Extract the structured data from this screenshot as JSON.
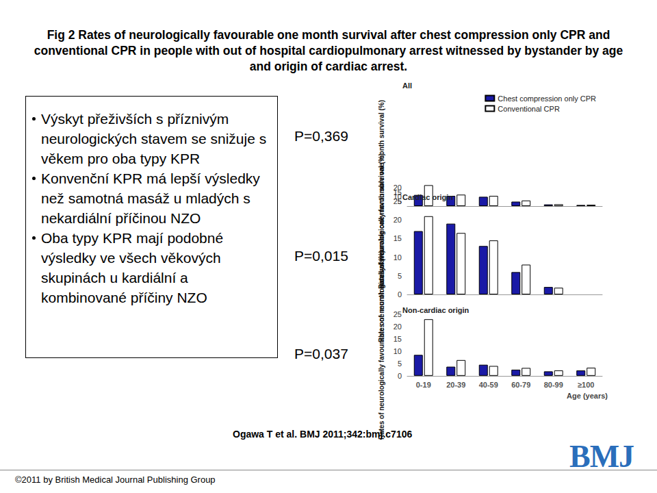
{
  "page": {
    "title": "Fig 2 Rates of neurologically favourable one month survival after chest compression only CPR and conventional CPR in people with out of hospital cardiopulmonary arrest witnessed by bystander by age and origin of cardiac arrest.",
    "bullets": [
      "Výskyt přeživších s příznivým neurologických stavem se snižuje s věkem pro oba typy KPR",
      "Konvenční KPR má lepší výsledky než samotná masáž u mladých s nekardiální příčinou NZO",
      "Oba typy KPR mají podobné výsledky ve všech věkových skupinách u kardiální a kombinované příčiny NZO"
    ],
    "citation": "Ogawa T et al. BMJ 2011;342:bmj.c7106",
    "logo": "BMJ",
    "copyright": "©2011 by British Medical Journal Publishing Group"
  },
  "chart_data": [
    {
      "type": "bar",
      "title": "All",
      "annotations": [
        "P=0,369"
      ],
      "categories": [
        "0-19",
        "20-39",
        "40-59",
        "60-79",
        "80-99",
        "≥100"
      ],
      "series": [
        {
          "name": "Chest compression only CPR",
          "color": "#1a1aa6",
          "values": [
            12,
            11,
            10,
            4.8,
            1.8,
            1.2
          ]
        },
        {
          "name": "Conventional CPR",
          "color": "#ffffff",
          "values": [
            22.5,
            12.3,
            11,
            6,
            2,
            1.5
          ]
        }
      ],
      "ylabel": "Rates of neurologically favourable one month survival (%)",
      "ylim": [
        0,
        25
      ],
      "yticks": [
        0,
        5,
        10,
        15,
        20,
        25
      ],
      "grid": false,
      "legend": "top-right",
      "tick_labels": "y"
    },
    {
      "type": "bar",
      "title": "Cardiac origin",
      "annotations": [
        "P=0,015"
      ],
      "categories": [
        "0-19",
        "20-39",
        "40-59",
        "60-79",
        "80-99",
        "≥100"
      ],
      "series": [
        {
          "name": "Chest compression only CPR",
          "color": "#1a1aa6",
          "values": [
            17,
            19,
            13,
            6,
            2,
            null
          ]
        },
        {
          "name": "Conventional CPR",
          "color": "#ffffff",
          "values": [
            21,
            16.5,
            14.5,
            8,
            1.8,
            null
          ]
        }
      ],
      "ylabel": "Rates of neurologically favourable one month survival (%)",
      "ylim": [
        0,
        25
      ],
      "yticks": [
        0,
        5,
        10,
        15,
        20,
        25
      ],
      "grid": false,
      "tick_labels": "y"
    },
    {
      "type": "bar",
      "title": "Non-cardiac origin",
      "annotations": [
        "P=0,037"
      ],
      "categories": [
        "0-19",
        "20-39",
        "40-59",
        "60-79",
        "80-99",
        "≥100"
      ],
      "series": [
        {
          "name": "Chest compression only CPR",
          "color": "#1a1aa6",
          "values": [
            8.5,
            3.7,
            4.5,
            2.5,
            1.8,
            2.2
          ]
        },
        {
          "name": "Conventional CPR",
          "color": "#ffffff",
          "values": [
            23,
            6.4,
            4,
            3.2,
            2.2,
            3.3
          ]
        }
      ],
      "xlabel": "Age (years)",
      "ylabel": "Rates of neurologically favourable one month survival (%)",
      "ylim": [
        0,
        25
      ],
      "yticks": [
        0,
        5,
        10,
        15,
        20,
        25
      ],
      "grid": false
    }
  ]
}
